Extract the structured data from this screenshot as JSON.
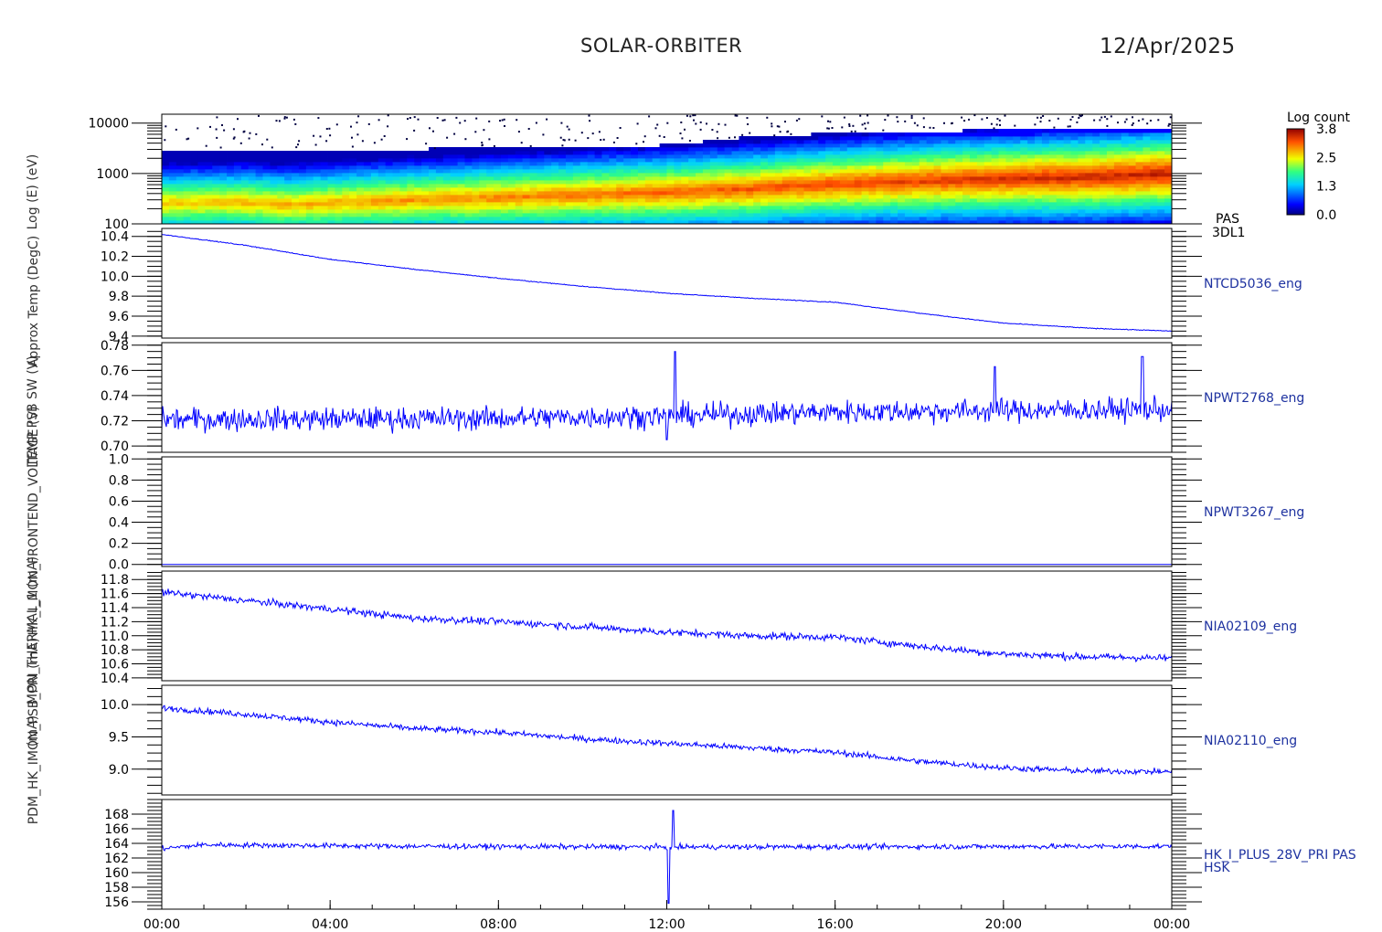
{
  "header": {
    "title": "SOLAR-ORBITER",
    "date": "12/Apr/2025"
  },
  "colors": {
    "trace": "#0000ff",
    "label": "#1e32a0",
    "axis": "#000000"
  },
  "ylabel_overlap": [
    "Log (E) (eV)",
    "Approx Temp (DegC)",
    "TEMP PSB SW (V)",
    "HK_I_MON_FRONTEND_VOLTAGE (V)",
    "MON_THERMAL_1 (mA)",
    "PDM_HK_IMON_PSB_PRI (mA)",
    "(mA)"
  ],
  "chart_data": {
    "type": "line",
    "time_axis": {
      "range": [
        "00:00",
        "24:00"
      ],
      "tick_labels": [
        "00:00",
        "04:00",
        "08:00",
        "12:00",
        "16:00",
        "20:00",
        "00:00"
      ]
    },
    "panels": [
      {
        "id": "pas-3dl1",
        "type": "heatmap",
        "label": [
          "PAS",
          "3DL1"
        ],
        "yscale": "log",
        "ylim": [
          100,
          15000
        ],
        "y_ticks": [
          100,
          1000,
          10000
        ],
        "y_tick_labels": [
          "100",
          "1000",
          "10000"
        ],
        "colorbar": {
          "title": "Log count",
          "range": [
            0.0,
            3.8
          ],
          "tick_labels": [
            "3.8",
            "2.5",
            "1.3",
            "0.0"
          ]
        },
        "peak_energy_profile": [
          {
            "t": 0,
            "e": 260
          },
          {
            "t": 2,
            "e": 270
          },
          {
            "t": 3,
            "e": 240
          },
          {
            "t": 4,
            "e": 260
          },
          {
            "t": 6,
            "e": 300
          },
          {
            "t": 8,
            "e": 330
          },
          {
            "t": 10,
            "e": 380
          },
          {
            "t": 12,
            "e": 420
          },
          {
            "t": 14,
            "e": 500
          },
          {
            "t": 16,
            "e": 620
          },
          {
            "t": 18,
            "e": 720
          },
          {
            "t": 20,
            "e": 800
          },
          {
            "t": 22,
            "e": 850
          },
          {
            "t": 24,
            "e": 1000
          }
        ],
        "upper_edge_profile": [
          {
            "t": 0,
            "e": 2800
          },
          {
            "t": 6,
            "e": 2900
          },
          {
            "t": 10,
            "e": 3200
          },
          {
            "t": 12,
            "e": 3500
          },
          {
            "t": 14,
            "e": 5000
          },
          {
            "t": 16,
            "e": 6000
          },
          {
            "t": 20,
            "e": 7000
          },
          {
            "t": 24,
            "e": 8000
          }
        ]
      },
      {
        "id": "ntcd5036",
        "label": [
          "NTCD5036_eng"
        ],
        "ylim": [
          9.38,
          10.48
        ],
        "y_ticks": [
          9.4,
          9.6,
          9.8,
          10.0,
          10.2,
          10.4
        ],
        "y_tick_labels": [
          "9.4",
          "9.6",
          "9.8",
          "10.0",
          "10.2",
          "10.4"
        ],
        "noise": 0.004,
        "trend": [
          {
            "t": 0,
            "v": 10.42
          },
          {
            "t": 2,
            "v": 10.31
          },
          {
            "t": 4,
            "v": 10.17
          },
          {
            "t": 6,
            "v": 10.07
          },
          {
            "t": 8,
            "v": 9.98
          },
          {
            "t": 10,
            "v": 9.9
          },
          {
            "t": 12,
            "v": 9.83
          },
          {
            "t": 14,
            "v": 9.78
          },
          {
            "t": 16,
            "v": 9.74
          },
          {
            "t": 18,
            "v": 9.63
          },
          {
            "t": 20,
            "v": 9.53
          },
          {
            "t": 22,
            "v": 9.48
          },
          {
            "t": 24,
            "v": 9.45
          }
        ]
      },
      {
        "id": "npwt2768",
        "label": [
          "NPWT2768_eng"
        ],
        "ylim": [
          0.695,
          0.782
        ],
        "y_ticks": [
          0.7,
          0.72,
          0.74,
          0.76,
          0.78
        ],
        "y_tick_labels": [
          "0.70",
          "0.72",
          "0.74",
          "0.76",
          "0.78"
        ],
        "noise": 0.009,
        "trend": [
          {
            "t": 0,
            "v": 0.721
          },
          {
            "t": 8,
            "v": 0.722
          },
          {
            "t": 12,
            "v": 0.724
          },
          {
            "t": 16,
            "v": 0.727
          },
          {
            "t": 24,
            "v": 0.729
          }
        ],
        "spikes": [
          {
            "t": 12.2,
            "v": 0.775
          },
          {
            "t": 12.0,
            "v": 0.705
          },
          {
            "t": 23.3,
            "v": 0.771
          },
          {
            "t": 19.8,
            "v": 0.763
          }
        ]
      },
      {
        "id": "npwt3267",
        "label": [
          "NPWT3267_eng"
        ],
        "ylim": [
          -0.02,
          1.02
        ],
        "y_ticks": [
          0.0,
          0.2,
          0.4,
          0.6,
          0.8,
          1.0
        ],
        "y_tick_labels": [
          "0.0",
          "0.2",
          "0.4",
          "0.6",
          "0.8",
          "1.0"
        ],
        "noise": 0.0,
        "trend": [
          {
            "t": 0,
            "v": 0.0
          },
          {
            "t": 24,
            "v": 0.0
          }
        ]
      },
      {
        "id": "nia02109",
        "label": [
          "NIA02109_eng"
        ],
        "ylim": [
          10.36,
          11.92
        ],
        "y_ticks": [
          10.4,
          10.6,
          10.8,
          11.0,
          11.2,
          11.4,
          11.6,
          11.8
        ],
        "y_tick_labels": [
          "10.4",
          "10.6",
          "10.8",
          "11.0",
          "11.2",
          "11.4",
          "11.6",
          "11.8"
        ],
        "noise": 0.05,
        "trend": [
          {
            "t": 0,
            "v": 11.62
          },
          {
            "t": 2,
            "v": 11.5
          },
          {
            "t": 4,
            "v": 11.38
          },
          {
            "t": 6,
            "v": 11.25
          },
          {
            "t": 8,
            "v": 11.2
          },
          {
            "t": 10,
            "v": 11.13
          },
          {
            "t": 12,
            "v": 11.05
          },
          {
            "t": 14,
            "v": 11.0
          },
          {
            "t": 16,
            "v": 10.98
          },
          {
            "t": 18,
            "v": 10.85
          },
          {
            "t": 20,
            "v": 10.74
          },
          {
            "t": 22,
            "v": 10.7
          },
          {
            "t": 24,
            "v": 10.68
          }
        ]
      },
      {
        "id": "nia02110",
        "label": [
          "NIA02110_eng"
        ],
        "ylim": [
          8.6,
          10.3
        ],
        "y_ticks": [
          9.0,
          9.5,
          10.0
        ],
        "y_tick_labels": [
          "9.0",
          "9.5",
          "10.0"
        ],
        "noise": 0.045,
        "trend": [
          {
            "t": 0,
            "v": 9.95
          },
          {
            "t": 2,
            "v": 9.85
          },
          {
            "t": 4,
            "v": 9.73
          },
          {
            "t": 6,
            "v": 9.63
          },
          {
            "t": 8,
            "v": 9.57
          },
          {
            "t": 10,
            "v": 9.47
          },
          {
            "t": 12,
            "v": 9.4
          },
          {
            "t": 14,
            "v": 9.33
          },
          {
            "t": 16,
            "v": 9.26
          },
          {
            "t": 18,
            "v": 9.12
          },
          {
            "t": 20,
            "v": 9.02
          },
          {
            "t": 22,
            "v": 8.97
          },
          {
            "t": 24,
            "v": 8.96
          }
        ]
      },
      {
        "id": "hk-i-plus-28v",
        "label": [
          "HK_I_PLUS_28V_PRI PAS",
          "HSK"
        ],
        "ylim": [
          155,
          170
        ],
        "y_ticks": [
          156,
          158,
          160,
          162,
          164,
          166,
          168
        ],
        "y_tick_labels": [
          "156",
          "158",
          "160",
          "162",
          "164",
          "166",
          "168"
        ],
        "noise": 0.35,
        "trend": [
          {
            "t": 0,
            "v": 163.3
          },
          {
            "t": 1,
            "v": 163.8
          },
          {
            "t": 6,
            "v": 163.6
          },
          {
            "t": 12,
            "v": 163.5
          },
          {
            "t": 24,
            "v": 163.6
          }
        ],
        "spikes": [
          {
            "t": 12.15,
            "v": 168.5
          },
          {
            "t": 12.05,
            "v": 155.8
          }
        ]
      }
    ]
  }
}
